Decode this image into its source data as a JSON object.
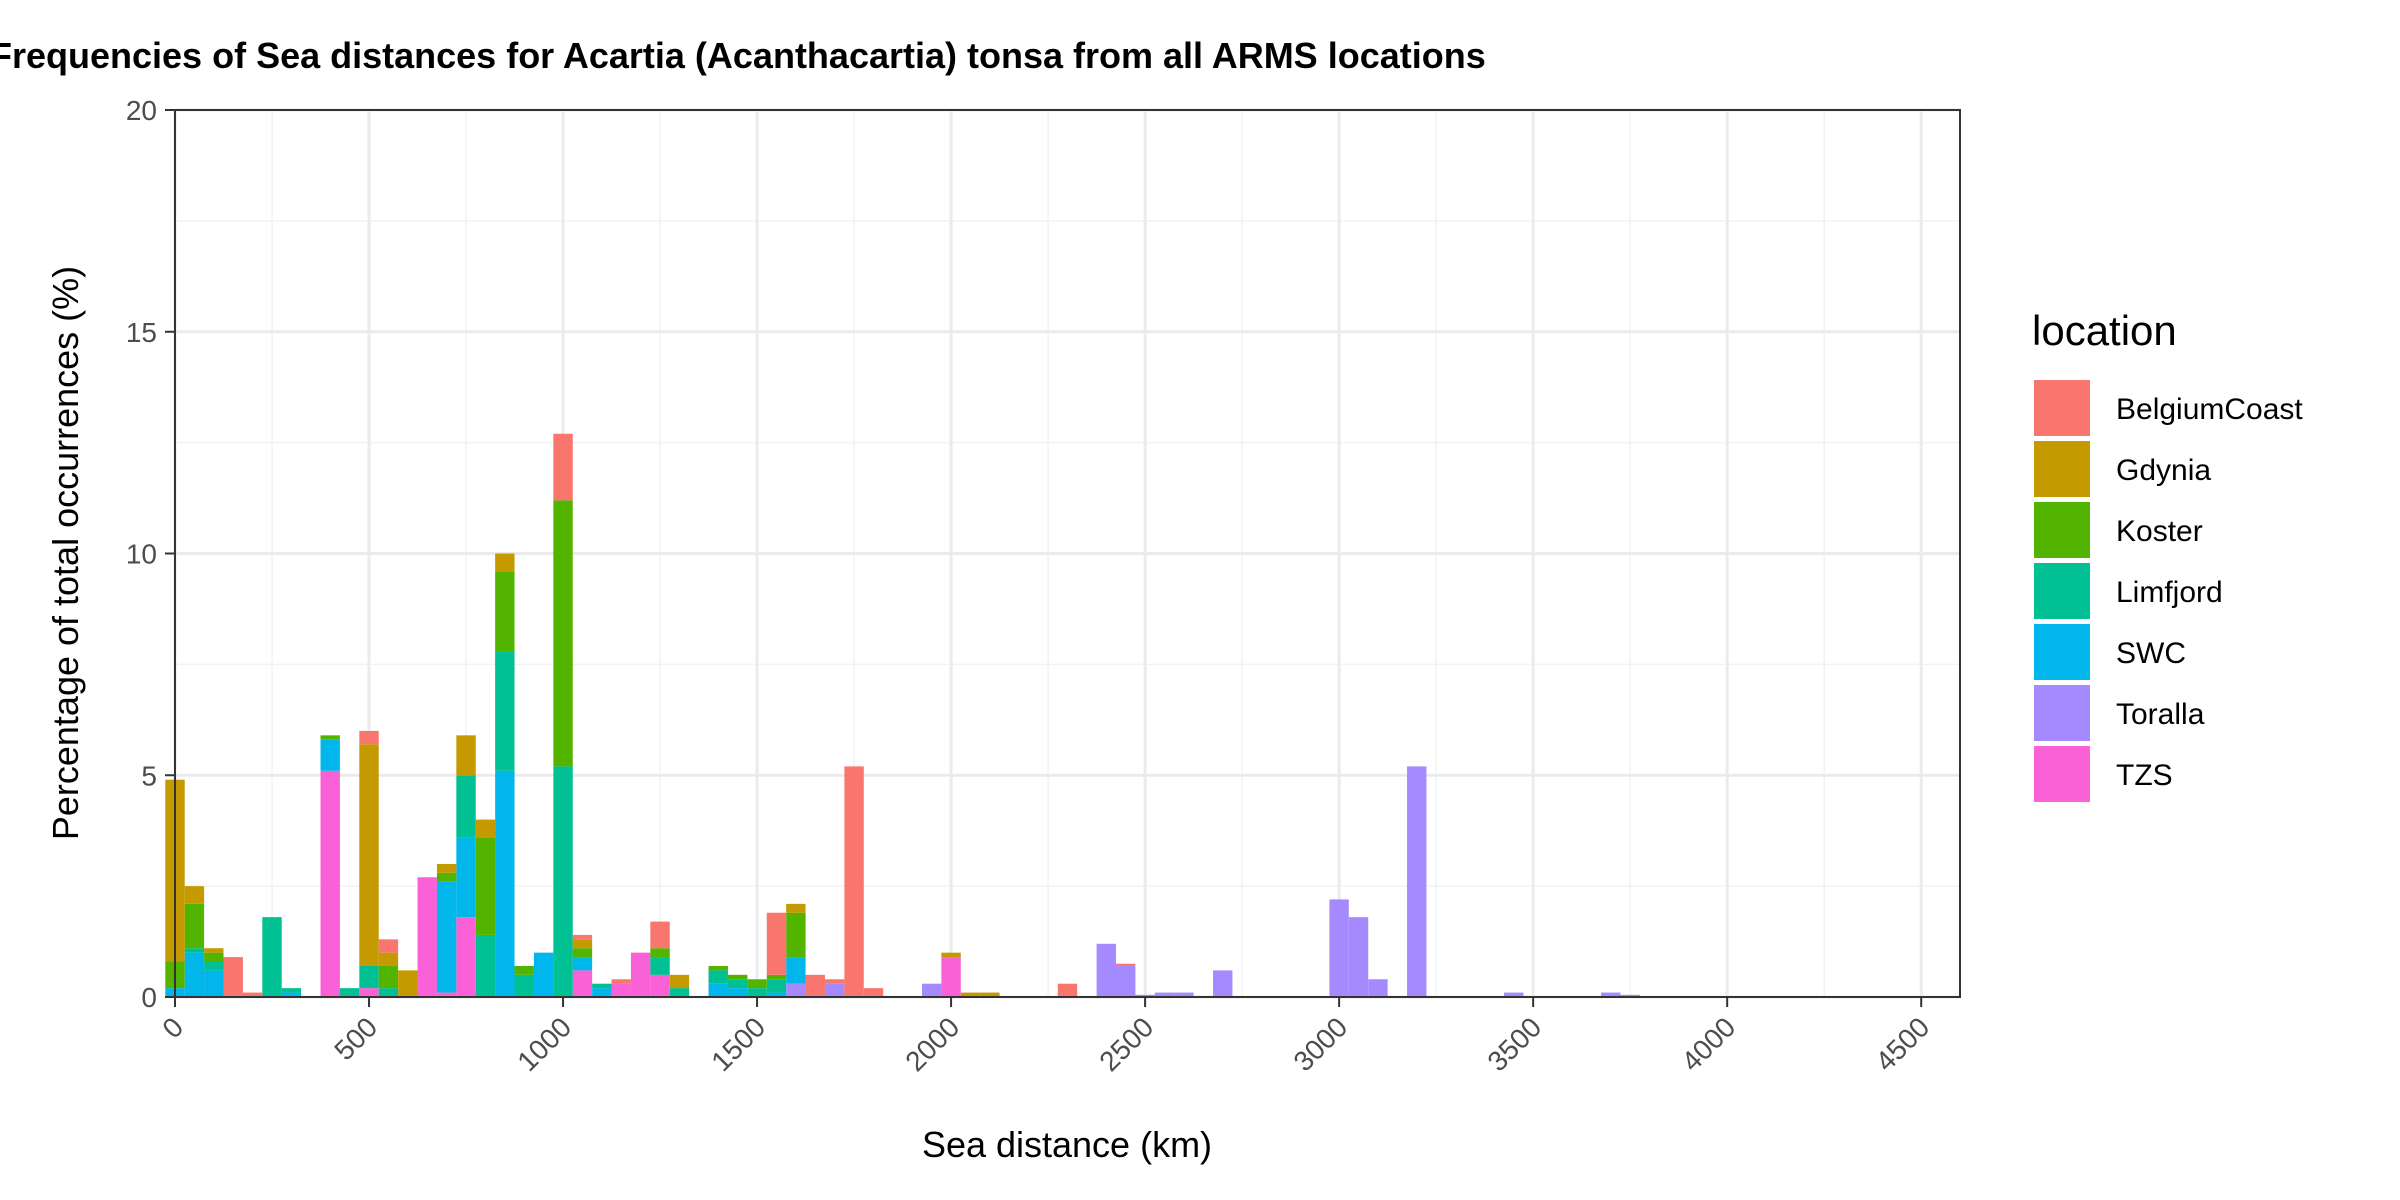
{
  "chart_data": {
    "type": "bar",
    "stacked": true,
    "title": "Frequencies of Sea distances for Acartia (Acanthacartia) tonsa from all ARMS locations",
    "xlabel": "Sea distance (km)",
    "ylabel": "Percentage of total occurrences (%)",
    "xlim": [
      0,
      4600
    ],
    "ylim": [
      0,
      20
    ],
    "bin_width": 50,
    "x_ticks": [
      0,
      500,
      1000,
      1500,
      2000,
      2500,
      3000,
      3500,
      4000,
      4500
    ],
    "x_tick_labels": [
      "0",
      "500",
      "1000",
      "1500",
      "2000",
      "2500",
      "3000",
      "3500",
      "4000",
      "4500"
    ],
    "y_ticks": [
      0,
      5,
      10,
      15,
      20
    ],
    "y_tick_labels": [
      "0",
      "5",
      "10",
      "15",
      "20"
    ],
    "grid": true,
    "legend_position": "right",
    "legend_title": "location",
    "series": [
      {
        "name": "BelgiumCoast",
        "color": "#F8766D",
        "points": [
          [
            150,
            0.9
          ],
          [
            200,
            0.1
          ],
          [
            500,
            0.3
          ],
          [
            550,
            0.3
          ],
          [
            1000,
            1.5
          ],
          [
            1050,
            0.1
          ],
          [
            1150,
            0.1
          ],
          [
            1250,
            0.6
          ],
          [
            1550,
            1.4
          ],
          [
            1650,
            0.5
          ],
          [
            1700,
            0.1
          ],
          [
            1750,
            5.2
          ],
          [
            1800,
            0.2
          ],
          [
            2300,
            0.3
          ],
          [
            2450,
            0.05
          ]
        ]
      },
      {
        "name": "Gdynia",
        "color": "#C49A00",
        "points": [
          [
            0,
            4.1
          ],
          [
            50,
            0.4
          ],
          [
            100,
            0.1
          ],
          [
            500,
            5.0
          ],
          [
            550,
            0.3
          ],
          [
            600,
            0.6
          ],
          [
            700,
            0.2
          ],
          [
            750,
            0.9
          ],
          [
            800,
            0.4
          ],
          [
            850,
            0.4
          ],
          [
            1050,
            0.2
          ],
          [
            1300,
            0.3
          ],
          [
            1600,
            0.2
          ],
          [
            2000,
            0.1
          ],
          [
            2050,
            0.1
          ],
          [
            2100,
            0.1
          ]
        ]
      },
      {
        "name": "Koster",
        "color": "#53B400",
        "points": [
          [
            0,
            0.6
          ],
          [
            50,
            1.0
          ],
          [
            100,
            0.2
          ],
          [
            400,
            0.1
          ],
          [
            550,
            0.5
          ],
          [
            700,
            0.2
          ],
          [
            800,
            2.2
          ],
          [
            850,
            1.8
          ],
          [
            900,
            0.2
          ],
          [
            1000,
            6.0
          ],
          [
            1050,
            0.2
          ],
          [
            1250,
            0.2
          ],
          [
            1400,
            0.1
          ],
          [
            1450,
            0.1
          ],
          [
            1500,
            0.2
          ],
          [
            1550,
            0.1
          ],
          [
            1600,
            1.0
          ]
        ]
      },
      {
        "name": "Limfjord",
        "color": "#00C094",
        "points": [
          [
            50,
            0.1
          ],
          [
            100,
            0.2
          ],
          [
            250,
            1.8
          ],
          [
            300,
            0.1
          ],
          [
            450,
            0.2
          ],
          [
            500,
            0.5
          ],
          [
            550,
            0.2
          ],
          [
            750,
            1.4
          ],
          [
            800,
            1.4
          ],
          [
            850,
            2.7
          ],
          [
            900,
            0.5
          ],
          [
            1000,
            5.2
          ],
          [
            1100,
            0.1
          ],
          [
            1250,
            0.4
          ],
          [
            1300,
            0.2
          ],
          [
            1400,
            0.3
          ],
          [
            1450,
            0.2
          ],
          [
            1500,
            0.2
          ],
          [
            1550,
            0.3
          ]
        ]
      },
      {
        "name": "SWC",
        "color": "#00B6EB",
        "points": [
          [
            0,
            0.2
          ],
          [
            50,
            1.0
          ],
          [
            100,
            0.6
          ],
          [
            300,
            0.1
          ],
          [
            400,
            0.7
          ],
          [
            700,
            2.5
          ],
          [
            750,
            1.8
          ],
          [
            850,
            5.1
          ],
          [
            950,
            1.0
          ],
          [
            1050,
            0.3
          ],
          [
            1100,
            0.2
          ],
          [
            1400,
            0.3
          ],
          [
            1450,
            0.2
          ],
          [
            1550,
            0.1
          ],
          [
            1600,
            0.6
          ]
        ]
      },
      {
        "name": "Toralla",
        "color": "#A58AFF",
        "points": [
          [
            1600,
            0.3
          ],
          [
            1700,
            0.3
          ],
          [
            1950,
            0.3
          ],
          [
            2400,
            1.2
          ],
          [
            2450,
            0.7
          ],
          [
            2500,
            0.05
          ],
          [
            2550,
            0.1
          ],
          [
            2600,
            0.1
          ],
          [
            2700,
            0.6
          ],
          [
            3000,
            2.2
          ],
          [
            3050,
            1.8
          ],
          [
            3100,
            0.4
          ],
          [
            3200,
            5.2
          ],
          [
            3450,
            0.1
          ],
          [
            3700,
            0.1
          ],
          [
            3750,
            0.05
          ]
        ]
      },
      {
        "name": "TZS",
        "color": "#FB61D7",
        "points": [
          [
            400,
            5.1
          ],
          [
            500,
            0.2
          ],
          [
            650,
            2.7
          ],
          [
            700,
            0.1
          ],
          [
            750,
            1.8
          ],
          [
            1050,
            0.6
          ],
          [
            1150,
            0.3
          ],
          [
            1200,
            1.0
          ],
          [
            1250,
            0.5
          ],
          [
            2000,
            0.9
          ]
        ]
      }
    ]
  }
}
